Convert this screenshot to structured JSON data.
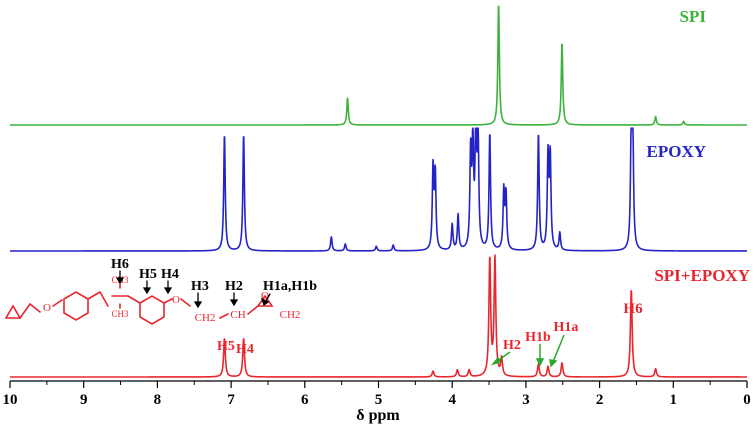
{
  "chart_data": {
    "type": "line",
    "title": "",
    "xlabel": "δ ppm",
    "ylabel": "",
    "xlim": [
      10,
      0
    ],
    "x_reversed": true,
    "x_ticks": [
      "10",
      "9",
      "8",
      "7",
      "6",
      "5",
      "4",
      "3",
      "2",
      "1",
      "0"
    ],
    "grid": false,
    "series": [
      {
        "name": "SPI",
        "color": "#3db33d",
        "peaks": [
          [
            5.42,
            0.22
          ],
          [
            3.37,
            1.0
          ],
          [
            2.51,
            0.68
          ],
          [
            1.24,
            0.07
          ],
          [
            0.86,
            0.03
          ]
        ]
      },
      {
        "name": "EPOXY",
        "color": "#2323c8",
        "peaks": [
          [
            7.09,
            1.0
          ],
          [
            6.83,
            1.0
          ],
          [
            5.64,
            0.12
          ],
          [
            5.45,
            0.06
          ],
          [
            5.03,
            0.04
          ],
          [
            4.8,
            0.05
          ],
          [
            4.26,
            0.69
          ],
          [
            4.23,
            0.64
          ],
          [
            4.0,
            0.22
          ],
          [
            3.92,
            0.3
          ],
          [
            3.75,
            0.8
          ],
          [
            3.72,
            0.88
          ],
          [
            3.68,
            1.0
          ],
          [
            3.65,
            1.0
          ],
          [
            3.49,
            1.0
          ],
          [
            3.3,
            0.5
          ],
          [
            3.27,
            0.47
          ],
          [
            2.83,
            1.0
          ],
          [
            2.7,
            0.79
          ],
          [
            2.67,
            0.79
          ],
          [
            2.54,
            0.15
          ],
          [
            1.57,
            1.0
          ],
          [
            1.55,
            0.95
          ]
        ]
      },
      {
        "name": "SPI+EPOXY",
        "color": "#e8262e",
        "peaks": [
          [
            7.09,
            0.33
          ],
          [
            6.83,
            0.33
          ],
          [
            4.26,
            0.05
          ],
          [
            3.93,
            0.06
          ],
          [
            3.77,
            0.06
          ],
          [
            3.49,
            1.0
          ],
          [
            3.42,
            1.0
          ],
          [
            3.33,
            0.15
          ],
          [
            2.83,
            0.11
          ],
          [
            2.7,
            0.09
          ],
          [
            2.51,
            0.12
          ],
          [
            1.57,
            0.75
          ],
          [
            1.24,
            0.07
          ]
        ]
      }
    ],
    "annotations": [
      {
        "text": "H5",
        "x": 7.1
      },
      {
        "text": "H4",
        "x": 6.8
      },
      {
        "text": "H2",
        "x": 3.2
      },
      {
        "text": "H1b",
        "x": 2.8
      },
      {
        "text": "H1a",
        "x": 2.55
      },
      {
        "text": "H6",
        "x": 1.57
      }
    ],
    "structure_labels": [
      "H6",
      "H5",
      "H4",
      "H3",
      "H2",
      "H1a,H1b",
      "CH3",
      "CH3",
      "O",
      "O",
      "O",
      "CH2",
      "CH",
      "CH2"
    ]
  }
}
